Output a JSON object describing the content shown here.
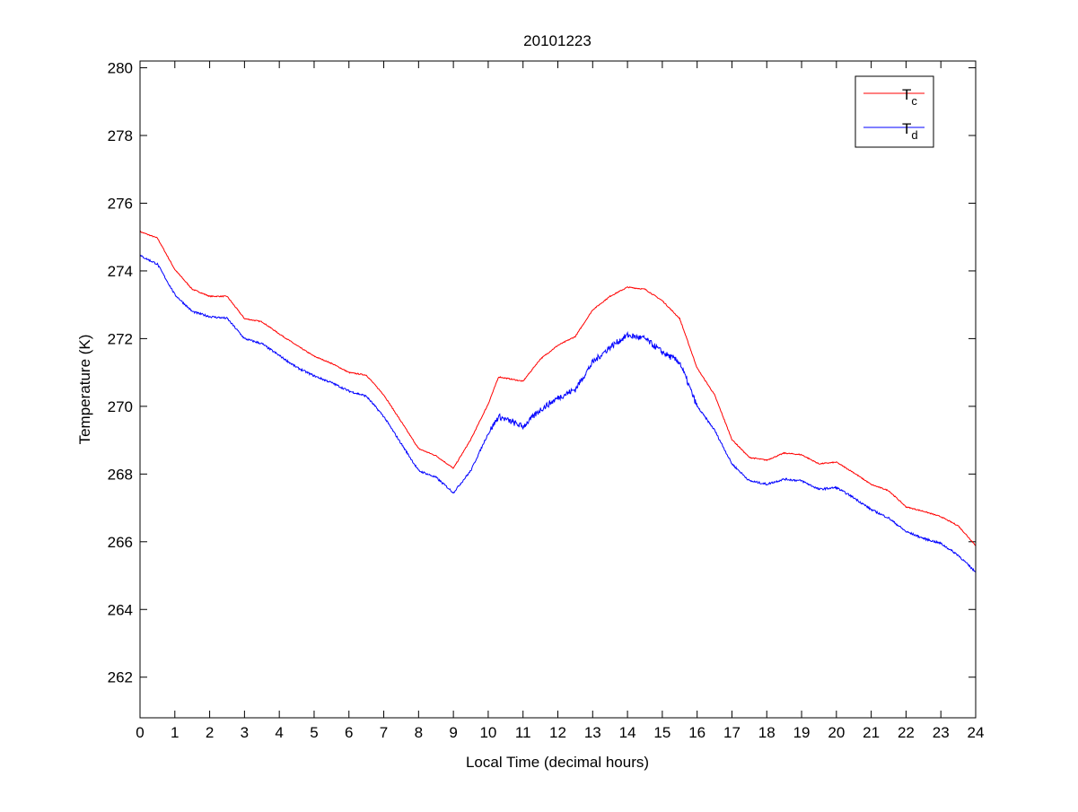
{
  "chart_data": {
    "type": "line",
    "title": "20101223",
    "xlabel": "Local Time (decimal hours)",
    "ylabel": "Temperature (K)",
    "xlim": [
      0,
      24
    ],
    "ylim": [
      260.8,
      280.2
    ],
    "xticks": [
      0,
      1,
      2,
      3,
      4,
      5,
      6,
      7,
      8,
      9,
      10,
      11,
      12,
      13,
      14,
      15,
      16,
      17,
      18,
      19,
      20,
      21,
      22,
      23,
      24
    ],
    "yticks": [
      262,
      264,
      266,
      268,
      270,
      272,
      274,
      276,
      278,
      280
    ],
    "grid": false,
    "legend_position": "top-right",
    "series": [
      {
        "name": "T",
        "subscript": "c",
        "color": "#ff0000",
        "x": [
          0,
          0.5,
          1,
          1.5,
          2,
          2.5,
          3,
          3.5,
          4,
          4.5,
          5,
          5.5,
          6,
          6.5,
          7,
          7.5,
          8,
          8.5,
          9,
          9.5,
          10,
          10.3,
          11,
          11.5,
          12,
          12.5,
          13,
          13.5,
          14,
          14.5,
          15,
          15.5,
          16,
          16.5,
          17,
          17.5,
          18,
          18.5,
          19,
          19.5,
          20,
          20.5,
          21,
          21.5,
          22,
          22.5,
          23,
          23.5,
          24
        ],
        "values": [
          275.16,
          274.97,
          274.04,
          273.46,
          273.25,
          273.25,
          272.59,
          272.5,
          272.14,
          271.8,
          271.48,
          271.27,
          271.0,
          270.92,
          270.34,
          269.55,
          268.75,
          268.54,
          268.17,
          269.02,
          270.07,
          270.87,
          270.74,
          271.4,
          271.8,
          272.06,
          272.85,
          273.25,
          273.52,
          273.46,
          273.12,
          272.59,
          271.13,
          270.34,
          269.02,
          268.49,
          268.41,
          268.62,
          268.57,
          268.3,
          268.35,
          268.04,
          267.69,
          267.51,
          267.03,
          266.9,
          266.74,
          266.47,
          265.89
        ]
      },
      {
        "name": "T",
        "subscript": "d",
        "color": "#0000ff",
        "x": [
          0,
          0.5,
          1,
          1.5,
          2,
          2.5,
          3,
          3.5,
          4,
          4.5,
          5,
          5.5,
          6,
          6.5,
          7,
          7.5,
          8,
          8.5,
          9,
          9.5,
          10,
          10.3,
          11,
          11.5,
          12,
          12.5,
          13,
          13.5,
          14,
          14.5,
          15,
          15.5,
          16,
          16.5,
          17,
          17.5,
          18,
          18.5,
          19,
          19.5,
          20,
          20.5,
          21,
          21.5,
          22,
          22.5,
          23,
          23.5,
          24
        ],
        "values": [
          274.45,
          274.2,
          273.3,
          272.8,
          272.65,
          272.6,
          272.0,
          271.85,
          271.5,
          271.15,
          270.9,
          270.7,
          270.45,
          270.3,
          269.7,
          268.9,
          268.1,
          267.9,
          267.45,
          268.1,
          269.2,
          269.7,
          269.4,
          269.9,
          270.25,
          270.5,
          271.3,
          271.75,
          272.1,
          272.0,
          271.6,
          271.3,
          270.0,
          269.3,
          268.3,
          267.8,
          267.7,
          267.85,
          267.8,
          267.55,
          267.6,
          267.3,
          266.95,
          266.7,
          266.3,
          266.1,
          265.95,
          265.6,
          265.1
        ]
      }
    ]
  }
}
